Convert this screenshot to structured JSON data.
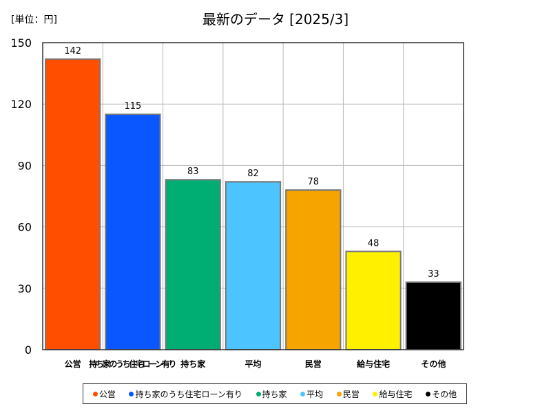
{
  "unit_label": "[単位：円]",
  "title": "最新のデータ [2025/3]",
  "chart_data": {
    "type": "bar",
    "title": "最新のデータ [2025/3]",
    "ylabel": "[単位：円]",
    "xlabel": "",
    "ylim": [
      0,
      150
    ],
    "yticks": [
      0,
      30,
      60,
      90,
      120,
      150
    ],
    "grid": true,
    "legend_position": "bottom",
    "categories": [
      "公営",
      "持ち家のうち住宅ローン有り",
      "持ち家",
      "平均",
      "民営",
      "給与住宅",
      "その他"
    ],
    "values": [
      142,
      115,
      83,
      82,
      78,
      48,
      33
    ],
    "colors": [
      "#ff4e00",
      "#0a56ff",
      "#00ae74",
      "#4cc4ff",
      "#f5a400",
      "#fff000",
      "#000000"
    ]
  },
  "legend": [
    {
      "label": "公営",
      "color": "#ff4e00"
    },
    {
      "label": "持ち家のうち住宅ローン有り",
      "color": "#0a56ff"
    },
    {
      "label": "持ち家",
      "color": "#00ae74"
    },
    {
      "label": "平均",
      "color": "#4cc4ff"
    },
    {
      "label": "民営",
      "color": "#f5a400"
    },
    {
      "label": "給与住宅",
      "color": "#fff000"
    },
    {
      "label": "その他",
      "color": "#000000"
    }
  ]
}
